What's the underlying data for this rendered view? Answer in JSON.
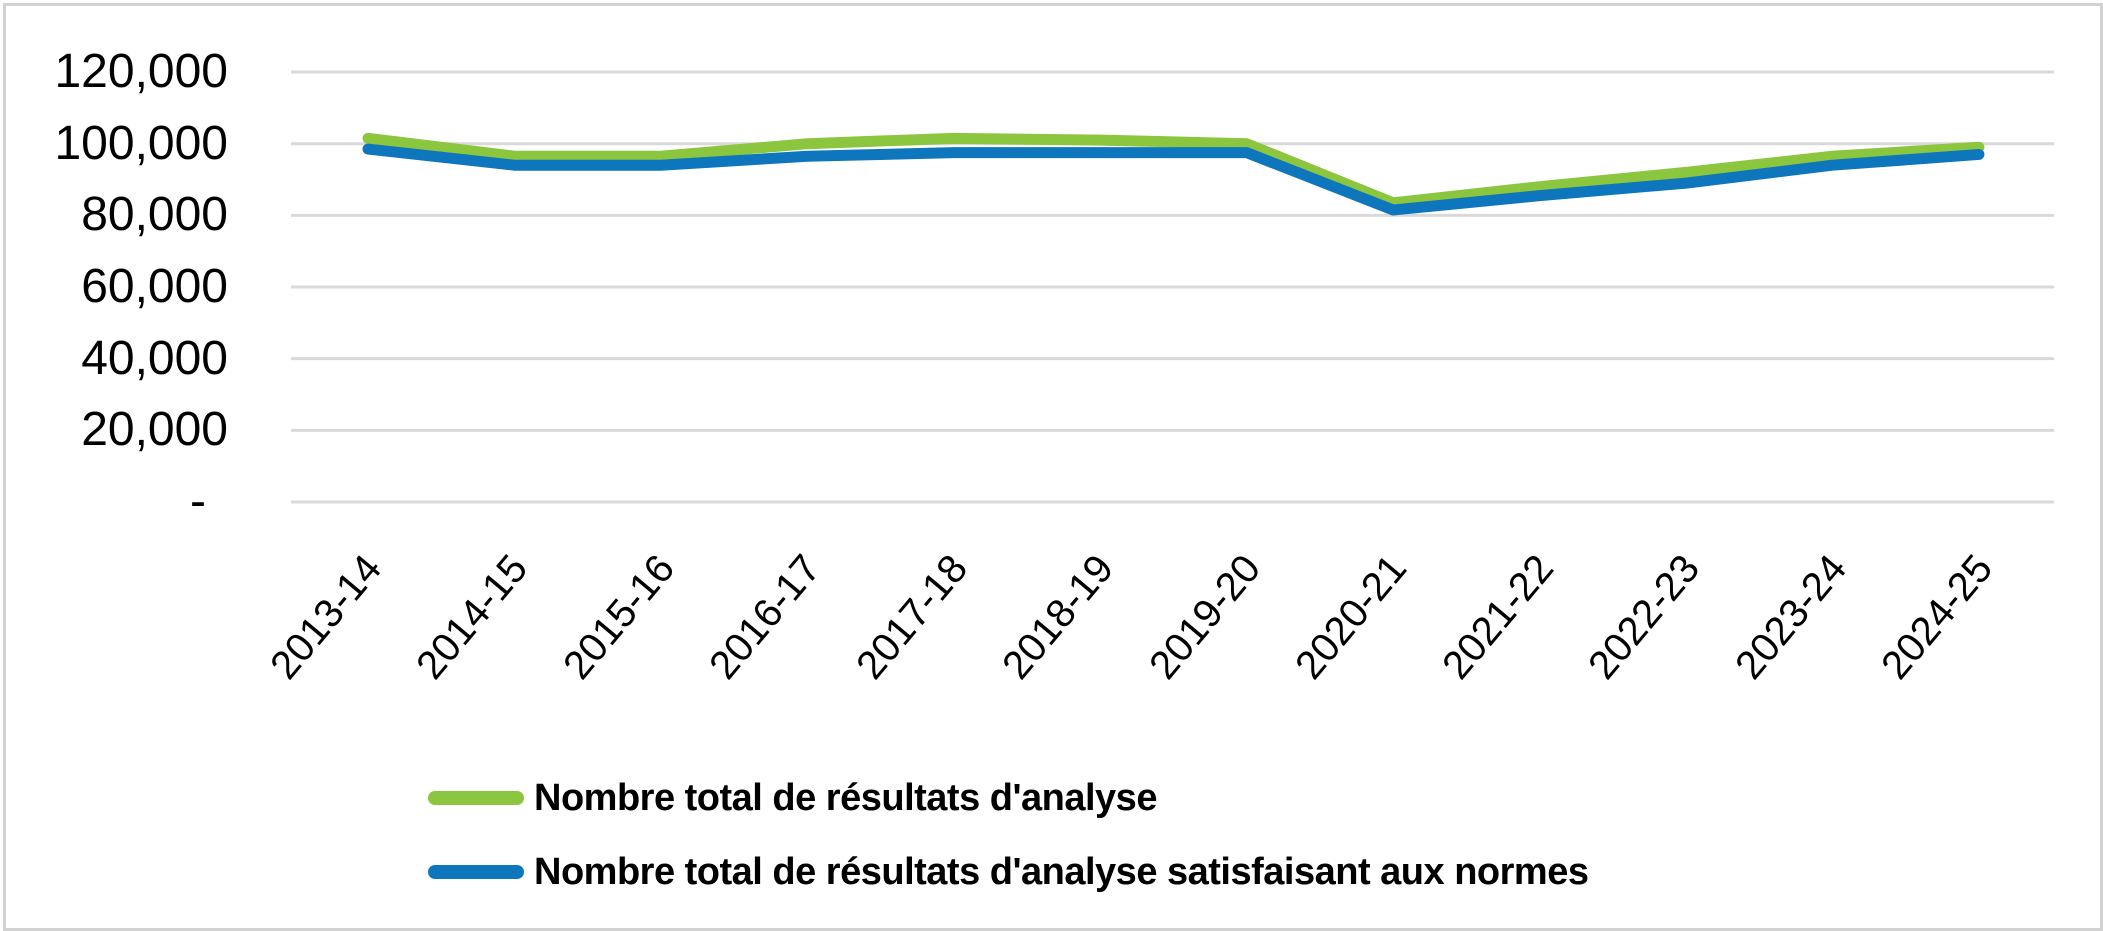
{
  "chart_data": {
    "type": "line",
    "title": "",
    "xlabel": "",
    "ylabel": "",
    "categories": [
      "2013-14",
      "2014-15",
      "2015-16",
      "2016-17",
      "2017-18",
      "2018-19",
      "2019-20",
      "2020-21",
      "2021-22",
      "2022-23",
      "2023-24",
      "2024-25"
    ],
    "series": [
      {
        "name": "Nombre total de résultats d'analyse",
        "color": "#8cc63f",
        "values": [
          101500,
          96500,
          96500,
          100000,
          101500,
          101000,
          100000,
          83500,
          88000,
          92000,
          96500,
          99000
        ]
      },
      {
        "name": "Nombre total de résultats d'analyse satisfaisant aux normes",
        "color": "#0e76bc",
        "values": [
          98500,
          94000,
          94000,
          96500,
          97500,
          97500,
          97500,
          81500,
          85500,
          89000,
          94000,
          97000
        ]
      }
    ],
    "y_axis": {
      "min": 0,
      "max": 120000,
      "ticks": [
        {
          "label": "120,000",
          "value": 120000
        },
        {
          "label": "100,000",
          "value": 100000
        },
        {
          "label": "80,000",
          "value": 80000
        },
        {
          "label": "60,000",
          "value": 60000
        },
        {
          "label": "40,000",
          "value": 40000
        },
        {
          "label": "20,000",
          "value": 20000
        },
        {
          "label": "-",
          "value": 0
        }
      ]
    },
    "grid": true,
    "gridline_color": "#d9d9d9",
    "legend_position": "bottom-left"
  }
}
